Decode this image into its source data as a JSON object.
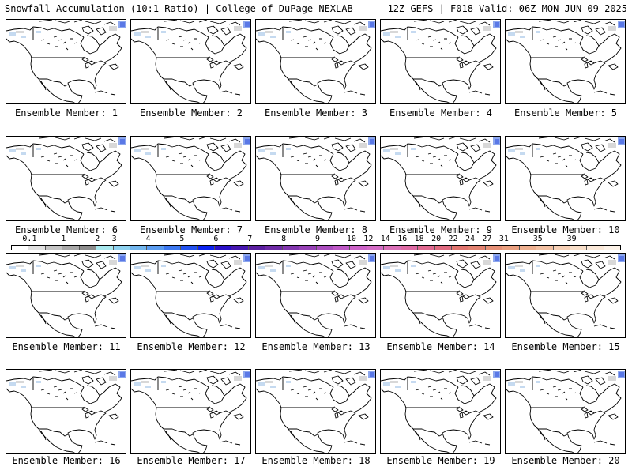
{
  "header": {
    "title_left": "Snowfall Accumulation (10:1 Ratio) | College of DuPage NEXLAB",
    "title_right": "12Z GEFS | F018 Valid: 06Z MON JUN 09 2025"
  },
  "members": [
    {
      "label": "Ensemble Member: 1"
    },
    {
      "label": "Ensemble Member: 2"
    },
    {
      "label": "Ensemble Member: 3"
    },
    {
      "label": "Ensemble Member: 4"
    },
    {
      "label": "Ensemble Member: 5"
    },
    {
      "label": "Ensemble Member: 6"
    },
    {
      "label": "Ensemble Member: 7"
    },
    {
      "label": "Ensemble Member: 8"
    },
    {
      "label": "Ensemble Member: 9"
    },
    {
      "label": "Ensemble Member: 10"
    },
    {
      "label": "Ensemble Member: 11"
    },
    {
      "label": "Ensemble Member: 12"
    },
    {
      "label": "Ensemble Member: 13"
    },
    {
      "label": "Ensemble Member: 14"
    },
    {
      "label": "Ensemble Member: 15"
    },
    {
      "label": "Ensemble Member: 16"
    },
    {
      "label": "Ensemble Member: 17"
    },
    {
      "label": "Ensemble Member: 18"
    },
    {
      "label": "Ensemble Member: 19"
    },
    {
      "label": "Ensemble Member: 20"
    }
  ],
  "colorbar": {
    "labels": [
      "0.1",
      "1",
      "2",
      "3",
      "4",
      "5",
      "6",
      "7",
      "8",
      "9",
      "10",
      "12",
      "14",
      "16",
      "18",
      "20",
      "22",
      "24",
      "27",
      "31",
      "35",
      "39"
    ],
    "colors": [
      "#ffffff",
      "#e0e0e0",
      "#c4c4c4",
      "#a8a8a8",
      "#8c8c8c",
      "#a8e8ee",
      "#8ed2f0",
      "#72b6ee",
      "#5a9cf0",
      "#3c78f0",
      "#2252f0",
      "#0a22f0",
      "#2a10c8",
      "#4616b0",
      "#5a1ea0",
      "#6e2aa6",
      "#8236ae",
      "#9640b6",
      "#aa4cbe",
      "#be58c6",
      "#cc62c8",
      "#d46cc6",
      "#da70b8",
      "#de6aa4",
      "#e06890",
      "#e06a80",
      "#e0746e",
      "#e28270",
      "#e69076",
      "#eaa080",
      "#eeb090",
      "#f2c0a2",
      "#f6d0b6",
      "#f8dec8",
      "#fae8d8",
      "#fcf2e8"
    ]
  }
}
